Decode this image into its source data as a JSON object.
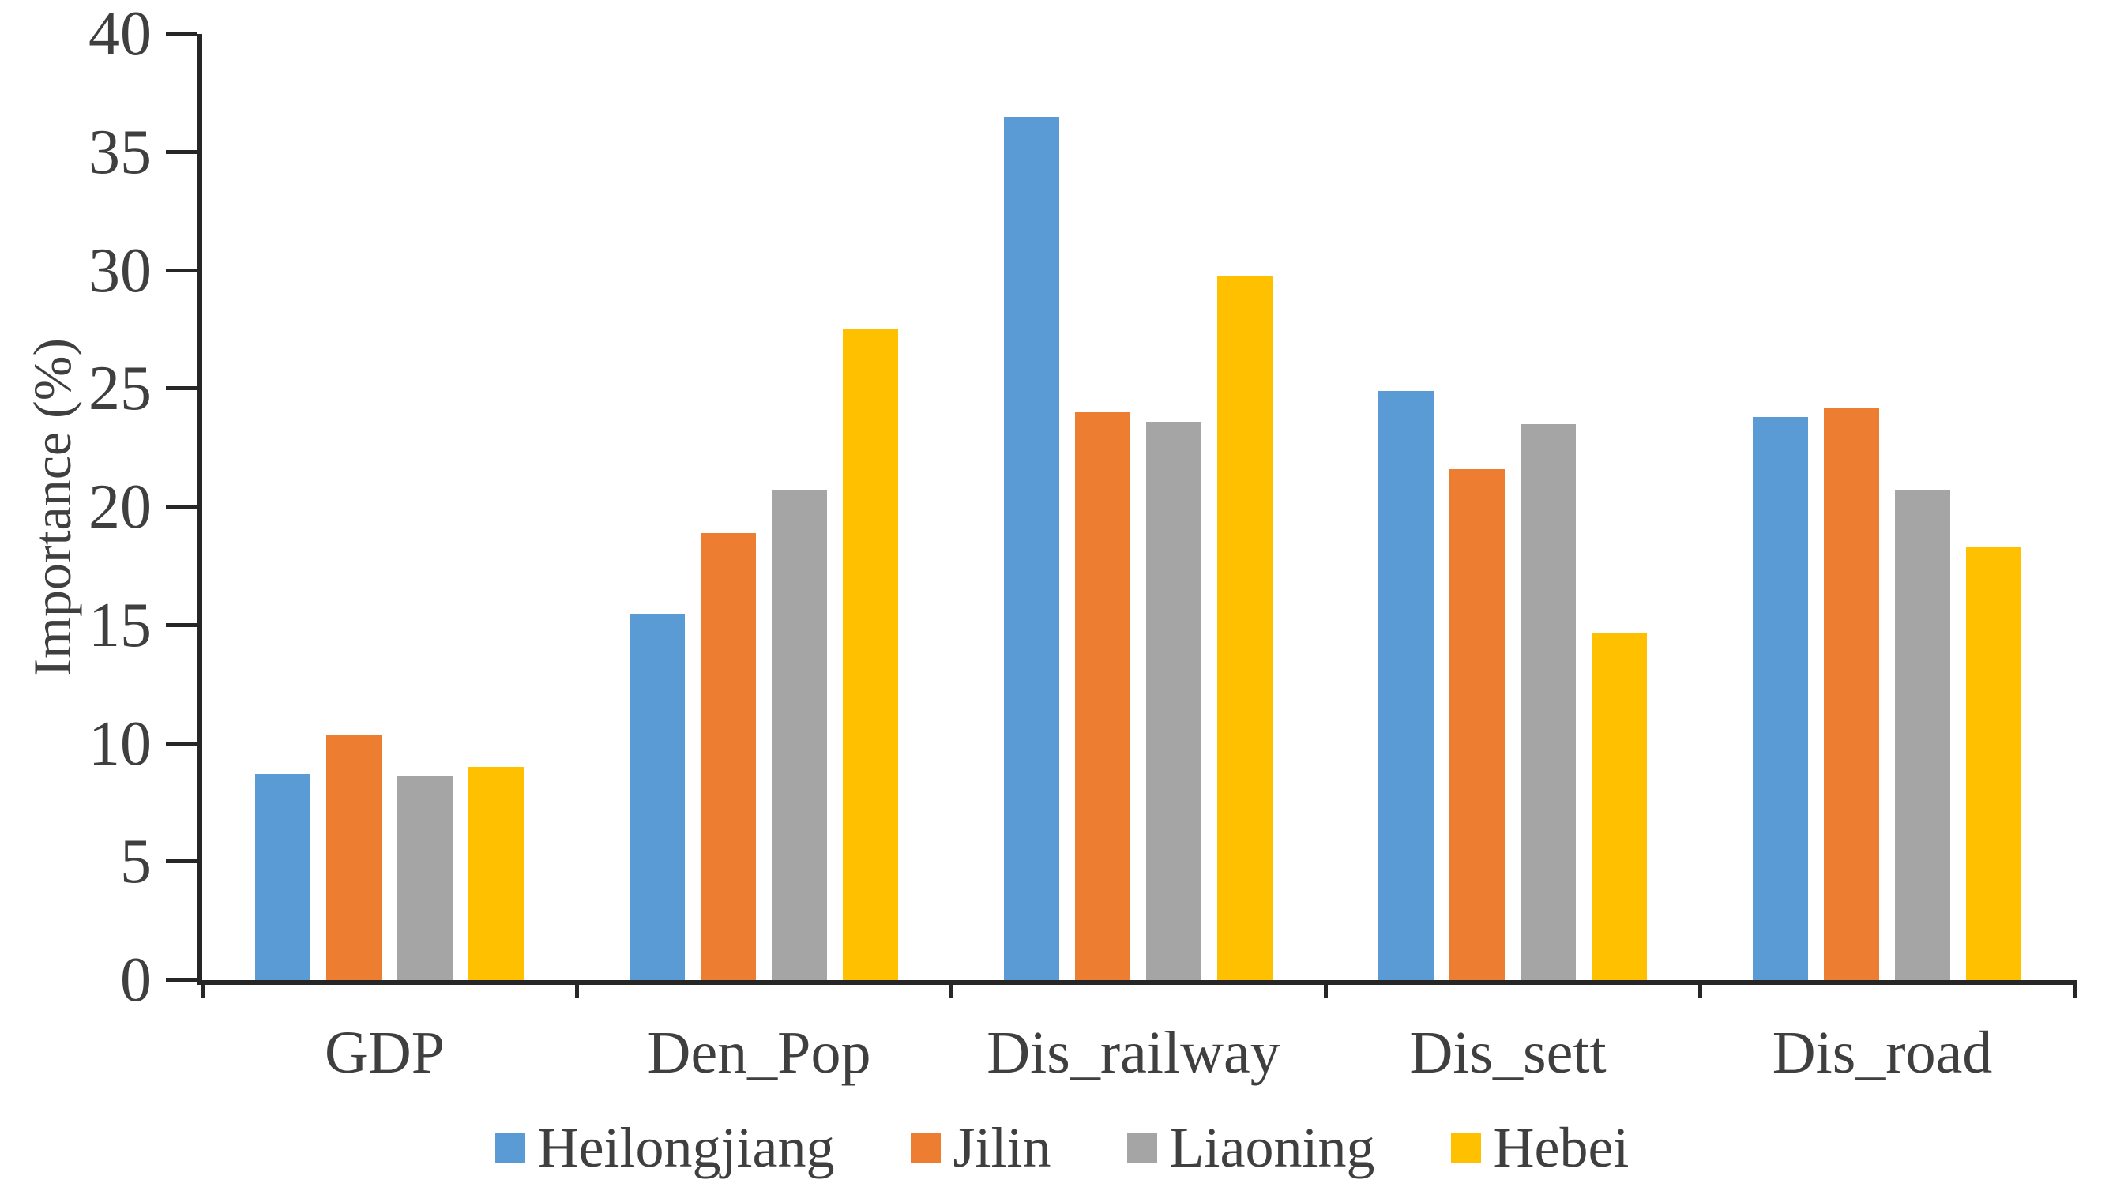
{
  "colors": {
    "axis": "#262626",
    "text": "#3f3f3f",
    "background": "#ffffff"
  },
  "chart_data": {
    "type": "bar",
    "title": "",
    "xlabel": "",
    "ylabel": "Importance (%)",
    "ylim": [
      0,
      40
    ],
    "yticks": [
      0,
      5,
      10,
      15,
      20,
      25,
      30,
      35,
      40
    ],
    "grid": false,
    "legend_position": "bottom",
    "categories": [
      "GDP",
      "Den_Pop",
      "Dis_railway",
      "Dis_sett",
      "Dis_road"
    ],
    "series": [
      {
        "name": "Heilongjiang",
        "color": "#5B9BD5",
        "values": [
          8.7,
          15.5,
          36.5,
          24.9,
          23.8
        ]
      },
      {
        "name": "Jilin",
        "color": "#ED7D31",
        "values": [
          10.4,
          18.9,
          24.0,
          21.6,
          24.2
        ]
      },
      {
        "name": "Liaoning",
        "color": "#A5A5A5",
        "values": [
          8.6,
          20.7,
          23.6,
          23.5,
          20.7
        ]
      },
      {
        "name": "Hebei",
        "color": "#FFC000",
        "values": [
          9.0,
          27.5,
          29.8,
          14.7,
          18.3
        ]
      }
    ]
  }
}
